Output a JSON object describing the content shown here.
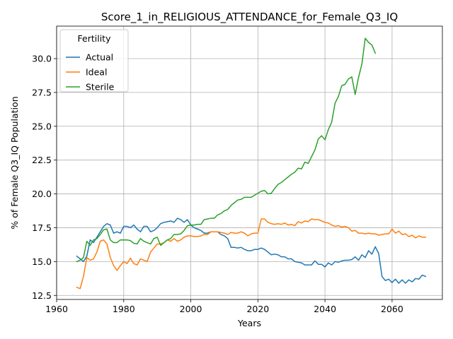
{
  "chart_data": {
    "type": "line",
    "title": "Score_1_in_RELIGIOUS_ATTENDANCE_for_Female_Q3_IQ",
    "xlabel": "Years",
    "ylabel": "% of Female Q3_IQ Population",
    "xlim": [
      1960,
      2075
    ],
    "ylim": [
      12.2,
      32.4
    ],
    "xticks": [
      1960,
      1980,
      2000,
      2020,
      2040,
      2060
    ],
    "yticks": [
      12.5,
      15.0,
      17.5,
      20.0,
      22.5,
      25.0,
      27.5,
      30.0
    ],
    "ytick_labels": [
      "12.5",
      "15.0",
      "17.5",
      "20.0",
      "22.5",
      "25.0",
      "27.5",
      "30.0"
    ],
    "grid": true,
    "legend": {
      "title": "Fertility",
      "placement": "top-left"
    },
    "series": [
      {
        "name": "Actual",
        "color": "#1f77b4",
        "x": [
          1966,
          1967,
          1968,
          1969,
          1970,
          1971,
          1972,
          1973,
          1974,
          1975,
          1976,
          1977,
          1978,
          1979,
          1980,
          1981,
          1982,
          1983,
          1984,
          1985,
          1986,
          1987,
          1988,
          1989,
          1990,
          1991,
          1992,
          1993,
          1994,
          1995,
          1996,
          1997,
          1998,
          1999,
          2000,
          2001,
          2002,
          2003,
          2004,
          2005,
          2006,
          2007,
          2008,
          2009,
          2010,
          2011,
          2012,
          2013,
          2014,
          2015,
          2016,
          2017,
          2018,
          2019,
          2020,
          2021,
          2022,
          2023,
          2024,
          2025,
          2026,
          2027,
          2028,
          2029,
          2030,
          2031,
          2032,
          2033,
          2034,
          2035,
          2036,
          2037,
          2038,
          2039,
          2040,
          2041,
          2042,
          2043,
          2044,
          2045,
          2046,
          2047,
          2048,
          2049,
          2050,
          2051,
          2052,
          2053,
          2054,
          2055,
          2056,
          2057,
          2058,
          2059,
          2060,
          2061,
          2062,
          2063,
          2064,
          2065,
          2066,
          2067,
          2068,
          2069,
          2070
        ],
        "y": [
          15.4,
          15.2,
          15.0,
          15.4,
          16.6,
          16.4,
          16.8,
          17.2,
          17.6,
          17.8,
          17.7,
          17.1,
          17.2,
          17.1,
          17.6,
          17.6,
          17.5,
          17.7,
          17.4,
          17.2,
          17.6,
          17.6,
          17.2,
          17.3,
          17.5,
          17.8,
          17.9,
          17.95,
          18.0,
          17.9,
          18.2,
          18.1,
          17.9,
          18.1,
          17.7,
          17.5,
          17.4,
          17.3,
          17.1,
          17.1,
          17.2,
          17.2,
          17.2,
          17.0,
          16.9,
          16.7,
          16.05,
          16.05,
          16.0,
          16.05,
          15.9,
          15.8,
          15.8,
          15.9,
          15.9,
          16.0,
          15.9,
          15.7,
          15.5,
          15.55,
          15.5,
          15.35,
          15.35,
          15.2,
          15.2,
          15.0,
          14.95,
          14.9,
          14.75,
          14.75,
          14.75,
          15.05,
          14.8,
          14.8,
          14.6,
          14.9,
          14.75,
          15.0,
          14.95,
          15.05,
          15.1,
          15.1,
          15.15,
          15.35,
          15.1,
          15.5,
          15.3,
          15.8,
          15.55,
          16.1,
          15.6,
          13.9,
          13.6,
          13.7,
          13.45,
          13.7,
          13.4,
          13.65,
          13.4,
          13.65,
          13.5,
          13.75,
          13.7,
          14.0,
          13.9
        ]
      },
      {
        "name": "Ideal",
        "color": "#ff7f0e",
        "x": [
          1966,
          1967,
          1968,
          1969,
          1970,
          1971,
          1972,
          1973,
          1974,
          1975,
          1976,
          1977,
          1978,
          1979,
          1980,
          1981,
          1982,
          1983,
          1984,
          1985,
          1986,
          1987,
          1988,
          1989,
          1990,
          1991,
          1992,
          1993,
          1994,
          1995,
          1996,
          1997,
          1998,
          1999,
          2000,
          2001,
          2002,
          2003,
          2004,
          2005,
          2006,
          2007,
          2008,
          2009,
          2010,
          2011,
          2012,
          2013,
          2014,
          2015,
          2016,
          2017,
          2018,
          2019,
          2020,
          2021,
          2022,
          2023,
          2024,
          2025,
          2026,
          2027,
          2028,
          2029,
          2030,
          2031,
          2032,
          2033,
          2034,
          2035,
          2036,
          2037,
          2038,
          2039,
          2040,
          2041,
          2042,
          2043,
          2044,
          2045,
          2046,
          2047,
          2048,
          2049,
          2050,
          2051,
          2052,
          2053,
          2054,
          2055,
          2056,
          2057,
          2058,
          2059,
          2060,
          2061,
          2062,
          2063,
          2064,
          2065,
          2066,
          2067,
          2068,
          2069,
          2070
        ],
        "y": [
          13.1,
          13.0,
          13.9,
          15.3,
          15.1,
          15.2,
          15.7,
          16.5,
          16.6,
          16.3,
          15.3,
          14.7,
          14.35,
          14.7,
          15.0,
          14.85,
          15.25,
          14.85,
          14.75,
          15.2,
          15.1,
          15.0,
          15.7,
          16.0,
          16.3,
          16.3,
          16.4,
          16.6,
          16.5,
          16.7,
          16.5,
          16.6,
          16.8,
          16.9,
          16.9,
          16.85,
          16.85,
          16.9,
          17.0,
          17.0,
          17.2,
          17.2,
          17.2,
          17.15,
          17.1,
          17.0,
          17.15,
          17.1,
          17.1,
          17.2,
          17.1,
          16.9,
          17.05,
          17.1,
          17.1,
          18.15,
          18.15,
          17.9,
          17.8,
          17.75,
          17.8,
          17.75,
          17.85,
          17.7,
          17.75,
          17.65,
          17.95,
          17.85,
          18.0,
          17.95,
          18.15,
          18.1,
          18.1,
          18.0,
          17.9,
          17.85,
          17.7,
          17.6,
          17.65,
          17.55,
          17.6,
          17.5,
          17.25,
          17.3,
          17.1,
          17.1,
          17.05,
          17.1,
          17.05,
          17.05,
          16.95,
          17.0,
          17.05,
          17.05,
          17.4,
          17.1,
          17.25,
          17.0,
          17.05,
          16.85,
          16.95,
          16.75,
          16.9,
          16.8,
          16.8
        ]
      },
      {
        "name": "Sterile",
        "color": "#2ca02c",
        "x": [
          1966,
          1967,
          1968,
          1969,
          1970,
          1971,
          1972,
          1973,
          1974,
          1975,
          1976,
          1977,
          1978,
          1979,
          1980,
          1981,
          1982,
          1983,
          1984,
          1985,
          1986,
          1987,
          1988,
          1989,
          1990,
          1991,
          1992,
          1993,
          1994,
          1995,
          1996,
          1997,
          1998,
          1999,
          2000,
          2001,
          2002,
          2003,
          2004,
          2005,
          2006,
          2007,
          2008,
          2009,
          2010,
          2011,
          2012,
          2013,
          2014,
          2015,
          2016,
          2017,
          2018,
          2019,
          2020,
          2021,
          2022,
          2023,
          2024,
          2025,
          2026,
          2027,
          2028,
          2029,
          2030,
          2031,
          2032,
          2033,
          2034,
          2035,
          2036,
          2037,
          2038,
          2039,
          2040,
          2041,
          2042,
          2043,
          2044,
          2045,
          2046,
          2047,
          2048,
          2049,
          2050,
          2051,
          2052,
          2053,
          2054,
          2055
        ],
        "y": [
          15.0,
          15.1,
          15.3,
          16.5,
          16.2,
          16.6,
          16.7,
          17.0,
          17.35,
          17.4,
          16.6,
          16.4,
          16.4,
          16.6,
          16.6,
          16.6,
          16.55,
          16.35,
          16.3,
          16.7,
          16.5,
          16.4,
          16.3,
          16.7,
          16.8,
          16.2,
          16.4,
          16.6,
          16.7,
          17.0,
          17.0,
          17.05,
          17.3,
          17.65,
          17.7,
          17.7,
          17.75,
          17.75,
          18.1,
          18.15,
          18.2,
          18.2,
          18.45,
          18.55,
          18.75,
          18.85,
          19.15,
          19.35,
          19.55,
          19.6,
          19.75,
          19.75,
          19.75,
          19.9,
          20.05,
          20.2,
          20.25,
          20.0,
          20.05,
          20.4,
          20.7,
          20.85,
          21.05,
          21.25,
          21.45,
          21.6,
          21.9,
          21.85,
          22.35,
          22.25,
          22.75,
          23.25,
          24.05,
          24.3,
          24.0,
          24.75,
          25.3,
          26.7,
          27.2,
          28.0,
          28.1,
          28.5,
          28.65,
          27.35,
          28.6,
          29.6,
          31.5,
          31.2,
          31.0,
          30.4
        ]
      }
    ]
  }
}
